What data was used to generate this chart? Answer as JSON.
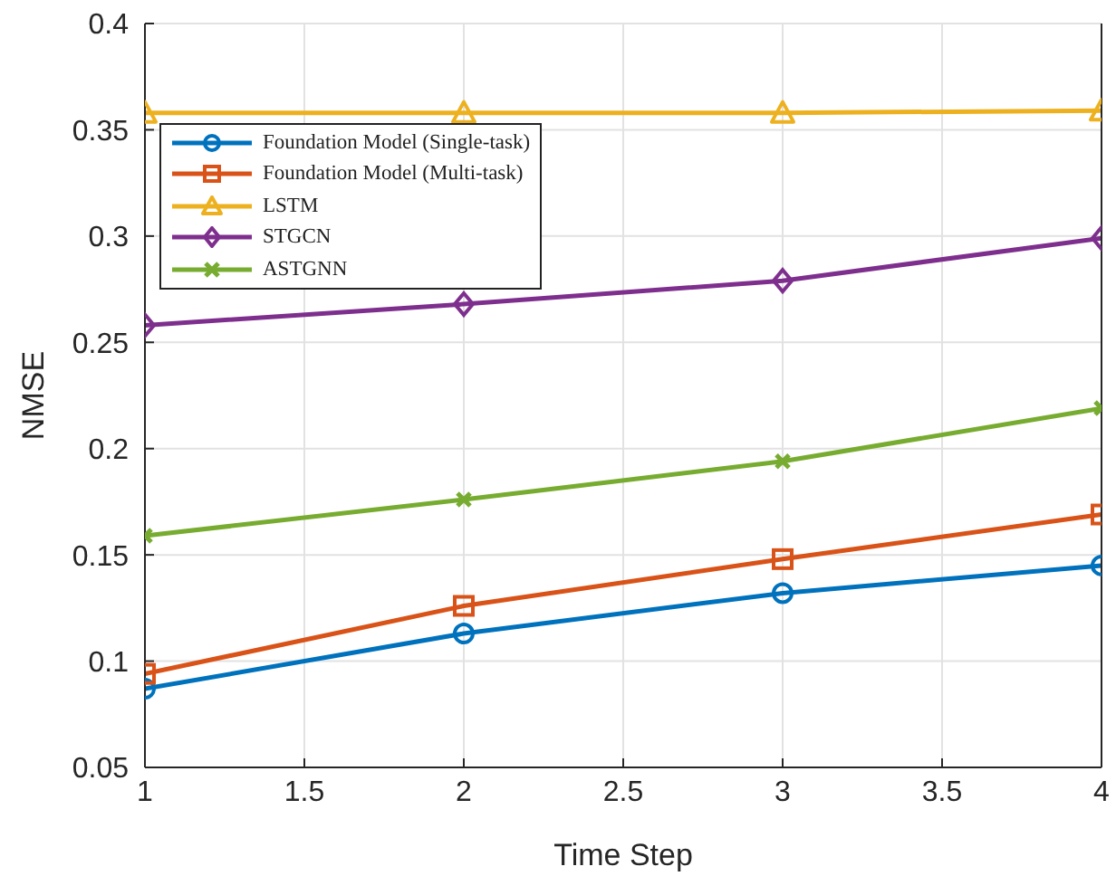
{
  "chart_data": {
    "type": "line",
    "xlabel": "Time Step",
    "ylabel": "NMSE",
    "x": [
      1,
      2,
      3,
      4
    ],
    "series": [
      {
        "name": "Foundation Model (Single-task)",
        "color": "#0072bd",
        "marker": "circle",
        "values": [
          0.087,
          0.113,
          0.132,
          0.145
        ]
      },
      {
        "name": "Foundation Model (Multi-task)",
        "color": "#d95319",
        "marker": "square",
        "values": [
          0.094,
          0.126,
          0.148,
          0.169
        ]
      },
      {
        "name": "LSTM",
        "color": "#edb120",
        "marker": "triangle",
        "values": [
          0.358,
          0.358,
          0.358,
          0.359
        ]
      },
      {
        "name": "STGCN",
        "color": "#7e2f8e",
        "marker": "diamond",
        "values": [
          0.258,
          0.268,
          0.279,
          0.299
        ]
      },
      {
        "name": "ASTGNN",
        "color": "#77ac30",
        "marker": "cross",
        "values": [
          0.159,
          0.176,
          0.194,
          0.219
        ]
      }
    ],
    "xlim": [
      1,
      4
    ],
    "xticks": [
      1,
      1.5,
      2,
      2.5,
      3,
      3.5,
      4
    ],
    "ylim": [
      0.05,
      0.4
    ],
    "yticks": [
      0.05,
      0.1,
      0.15,
      0.2,
      0.25,
      0.3,
      0.35,
      0.4
    ],
    "grid": true,
    "legend": "top left",
    "line_style": "solid"
  }
}
